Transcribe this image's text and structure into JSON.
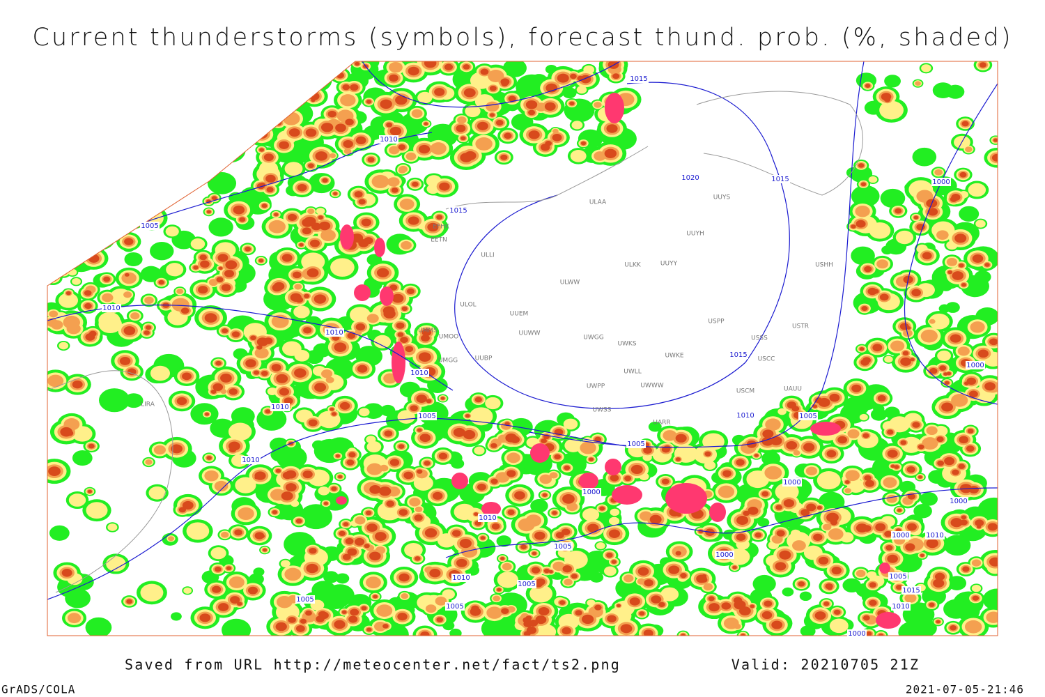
{
  "title": "Current thunderstorms (symbols), forecast thund. prob. (%, shaded)",
  "footer": {
    "source": "Saved from URL http://meteocenter.net/fact/ts2.png",
    "valid": "Valid: 20210705 21Z",
    "software": "GrADS/COLA",
    "timestamp": "2021-07-05-21:46"
  },
  "isobar_labels": [
    "1015",
    "1010",
    "1015",
    "1005",
    "1010",
    "1010",
    "1020",
    "1015",
    "1015",
    "1010",
    "1010",
    "1005",
    "1010",
    "1005",
    "1000",
    "1000",
    "1000",
    "1010",
    "1005",
    "1010",
    "1005",
    "1000",
    "1010",
    "1005",
    "1005",
    "1005",
    "1000",
    "1000",
    "1000",
    "1010",
    "1005",
    "1015",
    "1010",
    "1000"
  ],
  "stations": [
    "EFHK",
    "EETN",
    "ULLI",
    "ULOL",
    "UUEM",
    "UUWW",
    "ULWW",
    "ULKK",
    "UUYY",
    "UUYH",
    "UUYS",
    "ULAA",
    "USSS",
    "USTR",
    "USHH",
    "USPP",
    "UWKS",
    "UWGG",
    "UWKE",
    "UWLL",
    "UWWW",
    "UWPP",
    "UWSS",
    "UARR",
    "USCM",
    "USCC",
    "UAUU",
    "UMMS",
    "UMOO",
    "UUBP",
    "UMGG",
    "LIRA"
  ]
}
